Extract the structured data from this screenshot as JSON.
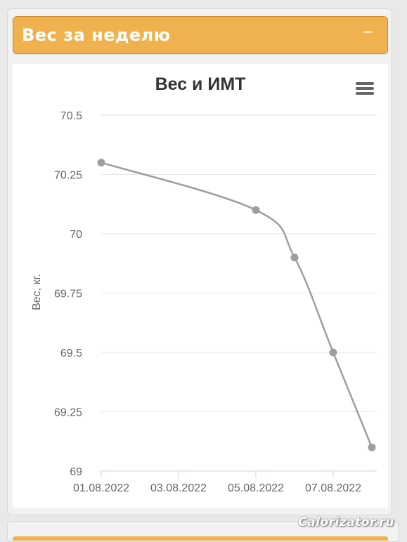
{
  "panel": {
    "title": "Вес за неделю",
    "collapse_symbol": "–"
  },
  "chart_menu_icon": "hamburger-menu-icon",
  "chart_data": {
    "type": "line",
    "title": "Вес и ИМТ",
    "ylabel": "Вес, кг.",
    "xlabel": "",
    "y_ticks": [
      "70.5",
      "70.25",
      "70",
      "69.75",
      "69.5",
      "69.25",
      "69"
    ],
    "y_tick_values": [
      70.5,
      70.25,
      70.0,
      69.75,
      69.5,
      69.25,
      69.0
    ],
    "ylim": [
      69,
      70.5
    ],
    "x_ticks": [
      "01.08.2022",
      "03.08.2022",
      "05.08.2022",
      "07.08.2022"
    ],
    "x_tick_values": [
      "2022-08-01",
      "2022-08-03",
      "2022-08-05",
      "2022-08-07"
    ],
    "xlim": [
      "2022-08-01",
      "2022-08-08"
    ],
    "grid": true,
    "series": [
      {
        "color": "#9e9e9e",
        "points": [
          {
            "x": "2022-08-01",
            "y": 70.3
          },
          {
            "x": "2022-08-05",
            "y": 70.1
          },
          {
            "x": "2022-08-06",
            "y": 69.9
          },
          {
            "x": "2022-08-07",
            "y": 69.5
          },
          {
            "x": "2022-08-08",
            "y": 69.1
          }
        ]
      }
    ]
  },
  "watermark": "Calorizator.ru"
}
